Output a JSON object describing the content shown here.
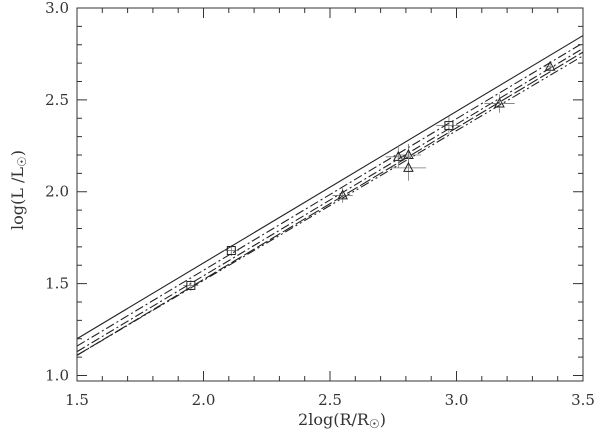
{
  "chart_data": {
    "type": "scatter",
    "title": "",
    "xlabel": "2log(R/R",
    "xlabel_suffix": ")",
    "ylabel": "log(L /L",
    "ylabel_suffix": ")",
    "xlim": [
      1.5,
      3.5
    ],
    "ylim": [
      0.97,
      3.0
    ],
    "x_ticks": [
      1.5,
      2.0,
      2.5,
      3.0,
      3.5
    ],
    "x_tick_labels": [
      "1.5",
      "2.0",
      "2.5",
      "3.0",
      "3.5"
    ],
    "y_ticks": [
      1.0,
      1.5,
      2.0,
      2.5,
      3.0
    ],
    "y_tick_labels": [
      "1.0",
      "1.5",
      "2.0",
      "2.5",
      "3.0"
    ],
    "grid": false,
    "lines": [
      {
        "style": "solid",
        "x": [
          1.5,
          3.5
        ],
        "y": [
          1.2,
          2.85
        ]
      },
      {
        "style": "dashdot",
        "x": [
          1.5,
          3.5
        ],
        "y": [
          1.16,
          2.81
        ]
      },
      {
        "style": "dashdot",
        "x": [
          1.5,
          3.5
        ],
        "y": [
          1.13,
          2.78
        ]
      },
      {
        "style": "longdash",
        "x": [
          1.5,
          3.5
        ],
        "y": [
          1.11,
          2.76
        ]
      },
      {
        "style": "dashdotdot",
        "x": [
          1.5,
          3.5
        ],
        "y": [
          1.11,
          2.74
        ]
      }
    ],
    "series": [
      {
        "marker": "square",
        "points": [
          {
            "x": 1.95,
            "y": 1.49,
            "xerr": 0.03,
            "yerr": 0.03
          },
          {
            "x": 2.11,
            "y": 1.68,
            "xerr": 0.03,
            "yerr": 0.03
          },
          {
            "x": 2.97,
            "y": 2.36,
            "xerr": 0.05,
            "yerr": 0.05
          }
        ]
      },
      {
        "marker": "triangle",
        "points": [
          {
            "x": 2.55,
            "y": 1.98,
            "xerr": 0.04,
            "yerr": 0.04
          },
          {
            "x": 2.77,
            "y": 2.19,
            "xerr": 0.05,
            "yerr": 0.06
          },
          {
            "x": 2.81,
            "y": 2.2,
            "xerr": 0.05,
            "yerr": 0.06
          },
          {
            "x": 2.81,
            "y": 2.13,
            "xerr": 0.07,
            "yerr": 0.07
          },
          {
            "x": 3.17,
            "y": 2.48,
            "xerr": 0.06,
            "yerr": 0.05
          },
          {
            "x": 3.37,
            "y": 2.68,
            "xerr": 0.02,
            "yerr": 0.02
          }
        ]
      }
    ]
  }
}
